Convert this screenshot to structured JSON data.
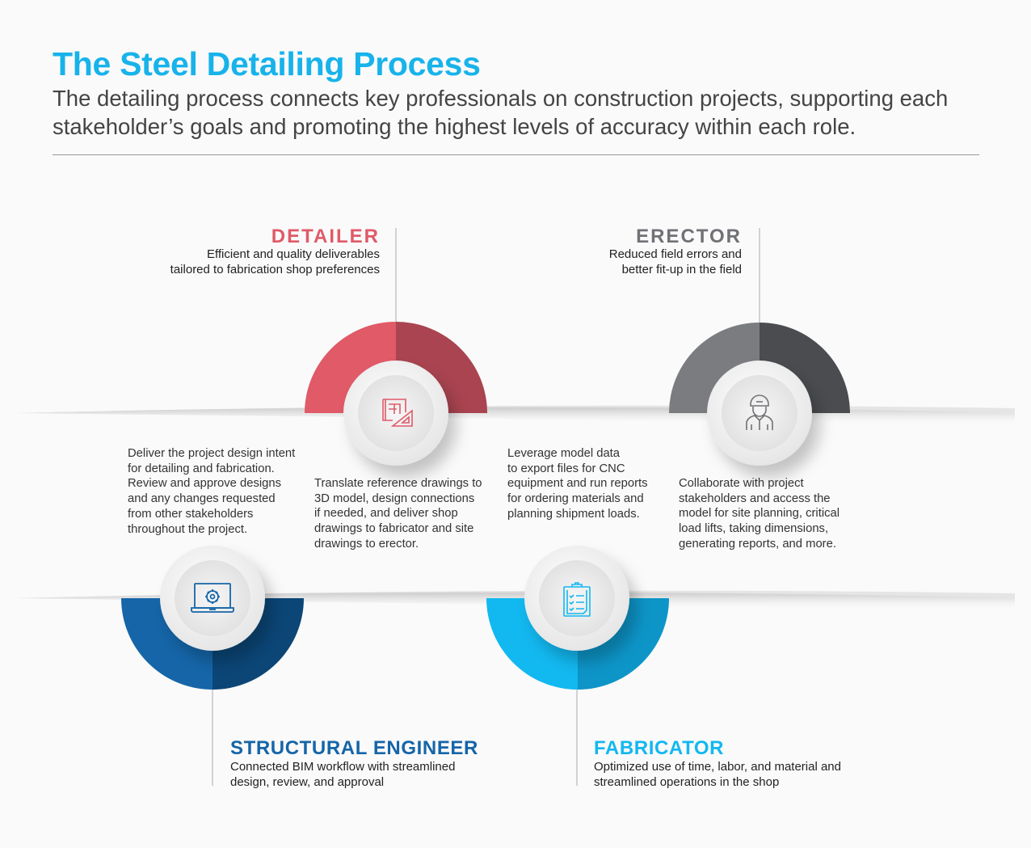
{
  "header": {
    "title": "The Steel Detailing Process",
    "subtitle": "The detailing process connects key professionals on construction projects, supporting each stakeholder’s goals and promoting the highest levels of accuracy within each role."
  },
  "colors": {
    "title": "#17b3ea",
    "detailer": "#e05a68",
    "erector": "#707276",
    "structural_engineer": "#1565a8",
    "fabricator": "#12b8f0"
  },
  "roles": {
    "detailer": {
      "name": "DETAILER",
      "tagline_1": "Efficient and quality deliverables",
      "tagline_2": "tailored to fabrication shop preferences",
      "icon": "blueprint-triangle-icon",
      "description": "Translate reference drawings to\n3D model, design connections\nif needed, and deliver shop\ndrawings to fabricator and site\ndrawings to erector."
    },
    "erector": {
      "name": "ERECTOR",
      "tagline_1": "Reduced field errors and",
      "tagline_2": "better fit-up in the field",
      "icon": "construction-worker-icon",
      "description": "Collaborate with project\nstakeholders and access the\nmodel for site planning, critical\nload lifts, taking dimensions,\ngenerating reports, and more."
    },
    "structural_engineer": {
      "name": "STRUCTURAL ENGINEER",
      "tagline_1": "Connected BIM workflow with streamlined",
      "tagline_2": "design, review, and approval",
      "icon": "laptop-gear-icon",
      "description": "Deliver the project design intent\nfor detailing and fabrication.\nReview and approve designs\nand any changes requested\nfrom other stakeholders\nthroughout the project."
    },
    "fabricator": {
      "name": "FABRICATOR",
      "tagline_1": "Optimized use of time, labor, and material and",
      "tagline_2": "streamlined operations in the shop",
      "icon": "clipboard-checklist-icon",
      "description": "Leverage model data\nto export files for CNC\nequipment and run reports\nfor ordering materials and\nplanning shipment loads."
    }
  }
}
